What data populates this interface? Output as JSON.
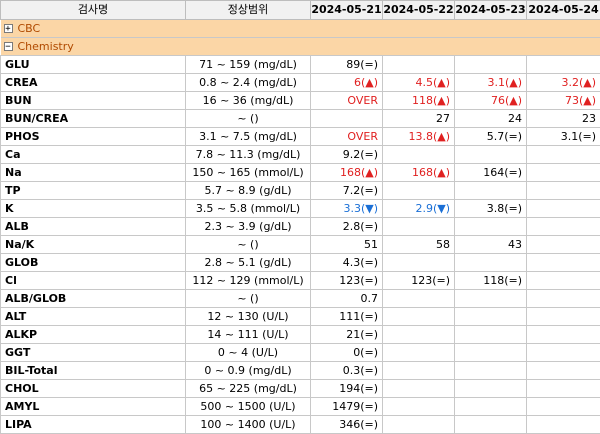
{
  "columns": {
    "test_name": "검사명",
    "normal_range": "정상범위",
    "dates": [
      "2024-05-21",
      "2024-05-22",
      "2024-05-23",
      "2024-05-24"
    ]
  },
  "groups": [
    {
      "name": "CBC",
      "toggle": "+"
    },
    {
      "name": "Chemistry",
      "toggle": "−"
    }
  ],
  "rows": [
    {
      "name": "GLU",
      "range": "71 ~ 159 (mg/dL)",
      "values": [
        {
          "t": "89(=)",
          "s": "ok"
        },
        {
          "t": "",
          "s": ""
        },
        {
          "t": "",
          "s": ""
        },
        {
          "t": "",
          "s": ""
        }
      ]
    },
    {
      "name": "CREA",
      "range": "0.8 ~ 2.4 (mg/dL)",
      "values": [
        {
          "t": "6(▲)",
          "s": "up"
        },
        {
          "t": "4.5(▲)",
          "s": "up"
        },
        {
          "t": "3.1(▲)",
          "s": "up"
        },
        {
          "t": "3.2(▲)",
          "s": "up"
        }
      ]
    },
    {
      "name": "BUN",
      "range": "16 ~ 36 (mg/dL)",
      "values": [
        {
          "t": "OVER",
          "s": "up"
        },
        {
          "t": "118(▲)",
          "s": "up"
        },
        {
          "t": "76(▲)",
          "s": "up"
        },
        {
          "t": "73(▲)",
          "s": "up"
        }
      ]
    },
    {
      "name": "BUN/CREA",
      "range": "~ ()",
      "values": [
        {
          "t": "",
          "s": ""
        },
        {
          "t": "27",
          "s": "ok"
        },
        {
          "t": "24",
          "s": "ok"
        },
        {
          "t": "23",
          "s": "ok"
        }
      ]
    },
    {
      "name": "PHOS",
      "range": "3.1 ~ 7.5 (mg/dL)",
      "values": [
        {
          "t": "OVER",
          "s": "up"
        },
        {
          "t": "13.8(▲)",
          "s": "up"
        },
        {
          "t": "5.7(=)",
          "s": "ok"
        },
        {
          "t": "3.1(=)",
          "s": "ok"
        }
      ]
    },
    {
      "name": "Ca",
      "range": "7.8 ~ 11.3 (mg/dL)",
      "values": [
        {
          "t": "9.2(=)",
          "s": "ok"
        },
        {
          "t": "",
          "s": ""
        },
        {
          "t": "",
          "s": ""
        },
        {
          "t": "",
          "s": ""
        }
      ]
    },
    {
      "name": "Na",
      "range": "150 ~ 165 (mmol/L)",
      "values": [
        {
          "t": "168(▲)",
          "s": "up"
        },
        {
          "t": "168(▲)",
          "s": "up"
        },
        {
          "t": "164(=)",
          "s": "ok"
        },
        {
          "t": "",
          "s": ""
        }
      ]
    },
    {
      "name": "TP",
      "range": "5.7 ~ 8.9 (g/dL)",
      "values": [
        {
          "t": "7.2(=)",
          "s": "ok"
        },
        {
          "t": "",
          "s": ""
        },
        {
          "t": "",
          "s": ""
        },
        {
          "t": "",
          "s": ""
        }
      ]
    },
    {
      "name": "K",
      "range": "3.5 ~ 5.8 (mmol/L)",
      "values": [
        {
          "t": "3.3(▼)",
          "s": "down"
        },
        {
          "t": "2.9(▼)",
          "s": "down"
        },
        {
          "t": "3.8(=)",
          "s": "ok"
        },
        {
          "t": "",
          "s": ""
        }
      ]
    },
    {
      "name": "ALB",
      "range": "2.3 ~ 3.9 (g/dL)",
      "values": [
        {
          "t": "2.8(=)",
          "s": "ok"
        },
        {
          "t": "",
          "s": ""
        },
        {
          "t": "",
          "s": ""
        },
        {
          "t": "",
          "s": ""
        }
      ]
    },
    {
      "name": "Na/K",
      "range": "~ ()",
      "values": [
        {
          "t": "51",
          "s": "ok"
        },
        {
          "t": "58",
          "s": "ok"
        },
        {
          "t": "43",
          "s": "ok"
        },
        {
          "t": "",
          "s": ""
        }
      ]
    },
    {
      "name": "GLOB",
      "range": "2.8 ~ 5.1 (g/dL)",
      "values": [
        {
          "t": "4.3(=)",
          "s": "ok"
        },
        {
          "t": "",
          "s": ""
        },
        {
          "t": "",
          "s": ""
        },
        {
          "t": "",
          "s": ""
        }
      ]
    },
    {
      "name": "Cl",
      "range": "112 ~ 129 (mmol/L)",
      "values": [
        {
          "t": "123(=)",
          "s": "ok"
        },
        {
          "t": "123(=)",
          "s": "ok"
        },
        {
          "t": "118(=)",
          "s": "ok"
        },
        {
          "t": "",
          "s": ""
        }
      ]
    },
    {
      "name": "ALB/GLOB",
      "range": "~ ()",
      "values": [
        {
          "t": "0.7",
          "s": "ok"
        },
        {
          "t": "",
          "s": ""
        },
        {
          "t": "",
          "s": ""
        },
        {
          "t": "",
          "s": ""
        }
      ]
    },
    {
      "name": "ALT",
      "range": "12 ~ 130 (U/L)",
      "values": [
        {
          "t": "111(=)",
          "s": "ok"
        },
        {
          "t": "",
          "s": ""
        },
        {
          "t": "",
          "s": ""
        },
        {
          "t": "",
          "s": ""
        }
      ]
    },
    {
      "name": "ALKP",
      "range": "14 ~ 111 (U/L)",
      "values": [
        {
          "t": "21(=)",
          "s": "ok"
        },
        {
          "t": "",
          "s": ""
        },
        {
          "t": "",
          "s": ""
        },
        {
          "t": "",
          "s": ""
        }
      ]
    },
    {
      "name": "GGT",
      "range": "0 ~ 4 (U/L)",
      "values": [
        {
          "t": "0(=)",
          "s": "ok"
        },
        {
          "t": "",
          "s": ""
        },
        {
          "t": "",
          "s": ""
        },
        {
          "t": "",
          "s": ""
        }
      ]
    },
    {
      "name": "BIL-Total",
      "range": "0 ~ 0.9 (mg/dL)",
      "values": [
        {
          "t": "0.3(=)",
          "s": "ok"
        },
        {
          "t": "",
          "s": ""
        },
        {
          "t": "",
          "s": ""
        },
        {
          "t": "",
          "s": ""
        }
      ]
    },
    {
      "name": "CHOL",
      "range": "65 ~ 225 (mg/dL)",
      "values": [
        {
          "t": "194(=)",
          "s": "ok"
        },
        {
          "t": "",
          "s": ""
        },
        {
          "t": "",
          "s": ""
        },
        {
          "t": "",
          "s": ""
        }
      ]
    },
    {
      "name": "AMYL",
      "range": "500 ~ 1500 (U/L)",
      "values": [
        {
          "t": "1479(=)",
          "s": "ok"
        },
        {
          "t": "",
          "s": ""
        },
        {
          "t": "",
          "s": ""
        },
        {
          "t": "",
          "s": ""
        }
      ]
    },
    {
      "name": "LIPA",
      "range": "100 ~ 1400 (U/L)",
      "values": [
        {
          "t": "346(=)",
          "s": "ok"
        },
        {
          "t": "",
          "s": ""
        },
        {
          "t": "",
          "s": ""
        },
        {
          "t": "",
          "s": ""
        }
      ]
    }
  ],
  "colors": {
    "group_bg": "#fbd6a6",
    "group_text": "#b04a00",
    "high": "#e02020",
    "low": "#1a6fd6"
  }
}
